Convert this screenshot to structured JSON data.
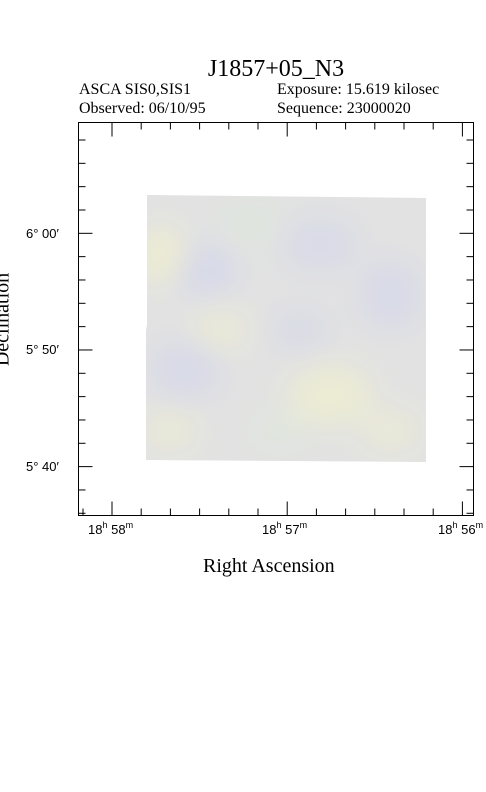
{
  "header": {
    "title": "J1857+05_N3",
    "instrument": "ASCA SIS0,SIS1",
    "exposure": "Exposure: 15.619 kilosec",
    "observed": "Observed: 06/10/95",
    "sequence": "Sequence: 23000020"
  },
  "axes": {
    "xlabel": "Right Ascension",
    "ylabel": "Declination",
    "x_ticks": [
      {
        "h": "18",
        "m": "58"
      },
      {
        "h": "18",
        "m": "57"
      },
      {
        "h": "18",
        "m": "56"
      }
    ],
    "y_ticks": [
      "6° 00′",
      "5° 50′",
      "5° 40′"
    ]
  },
  "colors": {
    "frame": "#000000",
    "image_base": "#dcdcdc",
    "tint_blue": "#c8cce8",
    "tint_yellow": "#ecebc4",
    "tint_green": "#d6e6cf"
  }
}
